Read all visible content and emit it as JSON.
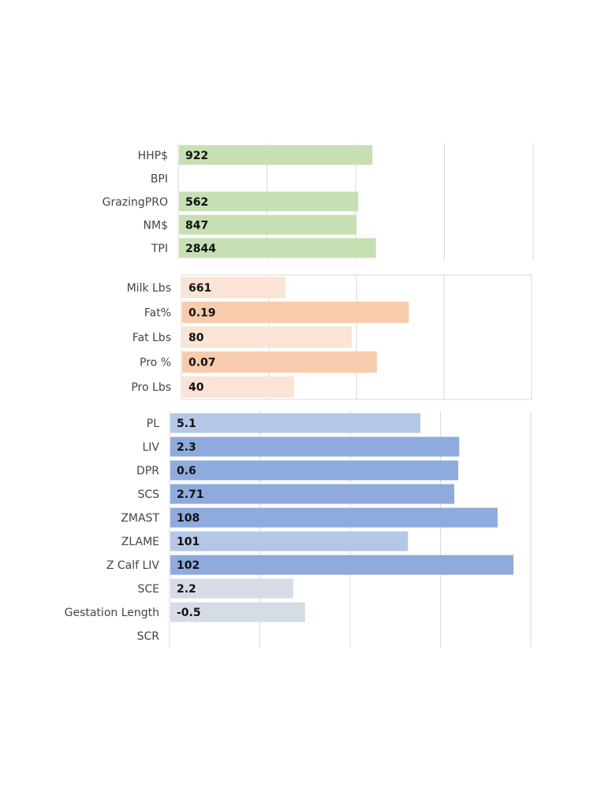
{
  "chart_data": [
    {
      "type": "bar",
      "orientation": "horizontal",
      "title": "",
      "categories": [
        "HHP$",
        "BPI",
        "GrazingPRO",
        "NM$",
        "TPI"
      ],
      "values": [
        922,
        null,
        562,
        847,
        2844
      ],
      "value_labels": [
        "922",
        "",
        "562",
        "847",
        "2844"
      ],
      "bar_fraction": [
        0.545,
        0,
        0.505,
        0.5,
        0.555
      ],
      "colors": [
        "#c6e0b4",
        "#c6e0b4",
        "#c6e0b4",
        "#c6e0b4",
        "#c6e0b4"
      ],
      "grid": true,
      "framed": false
    },
    {
      "type": "bar",
      "orientation": "horizontal",
      "title": "",
      "categories": [
        "Milk Lbs",
        "Fat%",
        "Fat Lbs",
        "Pro %",
        "Pro Lbs"
      ],
      "values": [
        661,
        0.19,
        80,
        0.07,
        40
      ],
      "value_labels": [
        "661",
        "0.19",
        "80",
        "0.07",
        "40"
      ],
      "bar_fraction": [
        0.295,
        0.647,
        0.485,
        0.556,
        0.32
      ],
      "colors": [
        "#fbe4d5",
        "#f8cbad",
        "#fbe4d5",
        "#f8cbad",
        "#fbe4d5"
      ],
      "grid": true,
      "framed": true
    },
    {
      "type": "bar",
      "orientation": "horizontal",
      "title": "",
      "categories": [
        "PL",
        "LIV",
        "DPR",
        "SCS",
        "ZMAST",
        "ZLAME",
        "Z Calf LIV",
        "SCE",
        "Gestation Length",
        "SCR"
      ],
      "values": [
        5.1,
        2.3,
        0.6,
        2.71,
        108,
        101,
        102,
        2.2,
        -0.5,
        null
      ],
      "value_labels": [
        "5.1",
        "2.3",
        "0.6",
        "2.71",
        "108",
        "101",
        "102",
        "2.2",
        "-0.5",
        ""
      ],
      "bar_fraction": [
        0.692,
        0.8,
        0.797,
        0.786,
        0.906,
        0.658,
        0.95,
        0.34,
        0.373,
        0
      ],
      "colors": [
        "#b4c7e7",
        "#8faadc",
        "#8faadc",
        "#8faadc",
        "#8faadc",
        "#b4c7e7",
        "#8faadc",
        "#d6dce5",
        "#d6dce5",
        "#d6dce5"
      ],
      "grid": true,
      "framed": false
    }
  ]
}
